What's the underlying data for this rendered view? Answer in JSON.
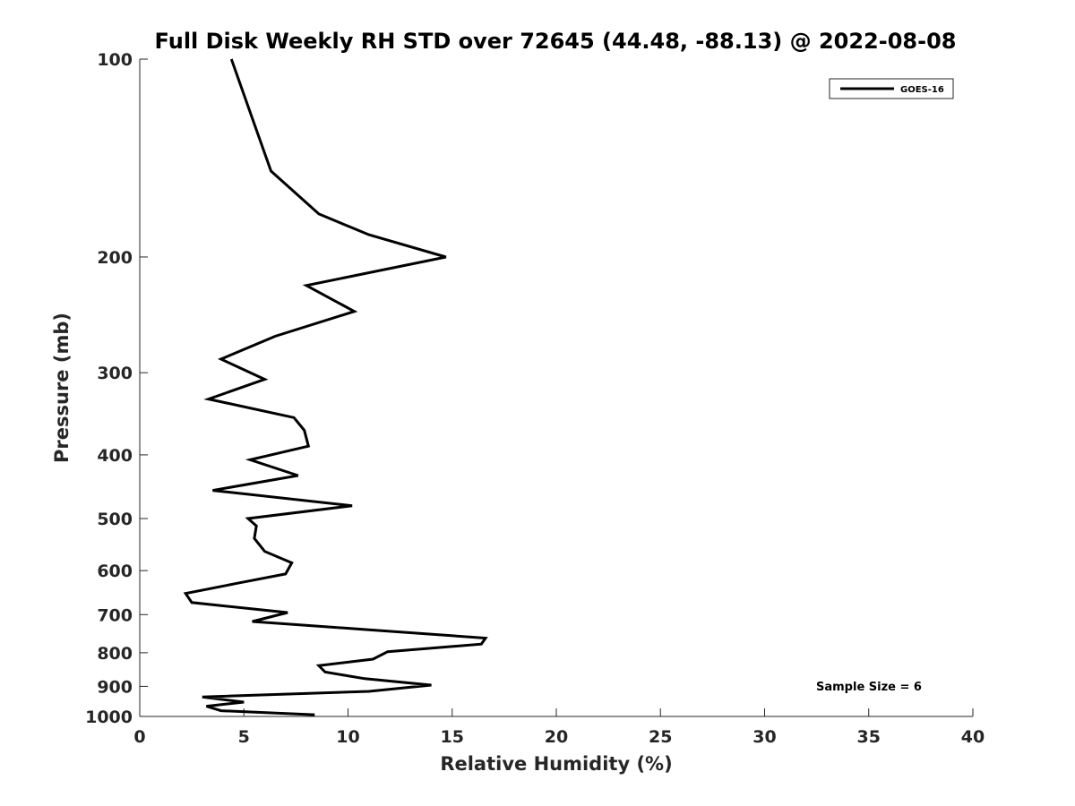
{
  "chart_data": {
    "type": "line",
    "title": "Full Disk Weekly RH STD over 72645 (44.48, -88.13) @ 2022-08-08",
    "xlabel": "Relative Humidity (%)",
    "ylabel": "Pressure (mb)",
    "xlim": [
      0,
      40
    ],
    "ylim": [
      100,
      1000
    ],
    "y_scale": "log",
    "y_reversed": true,
    "x_ticks": [
      "0",
      "5",
      "10",
      "15",
      "20",
      "25",
      "30",
      "35",
      "40"
    ],
    "y_ticks": [
      "100",
      "200",
      "300",
      "400",
      "500",
      "600",
      "700",
      "800",
      "900",
      "1000"
    ],
    "grid": false,
    "legend_position": "top-right",
    "series": [
      {
        "name": "GOES-16",
        "color": "#000000",
        "x": [
          4.4,
          5.4,
          6.3,
          8.6,
          11.0,
          14.7,
          8.0,
          10.3,
          6.5,
          3.9,
          6.0,
          3.3,
          7.4,
          7.9,
          8.1,
          5.3,
          7.6,
          3.5,
          10.2,
          5.2,
          5.6,
          5.5,
          6.0,
          7.3,
          7.0,
          4.7,
          2.2,
          2.5,
          7.1,
          5.4,
          11.0,
          16.6,
          16.4,
          11.9,
          11.2,
          8.6,
          8.9,
          10.8,
          14.0,
          11.0,
          3.0,
          5.0,
          3.2,
          3.9,
          8.4
        ],
        "y": [
          100,
          123,
          148,
          172,
          185,
          200,
          221,
          242,
          264,
          286,
          307,
          329,
          351,
          367,
          388,
          407,
          430,
          453,
          478,
          500,
          513,
          536,
          561,
          584,
          607,
          627,
          650,
          671,
          695,
          717,
          738,
          760,
          776,
          797,
          818,
          837,
          856,
          876,
          896,
          916,
          934,
          951,
          965,
          980,
          994
        ]
      }
    ],
    "annotations": [
      "Sample Size = 6"
    ]
  }
}
